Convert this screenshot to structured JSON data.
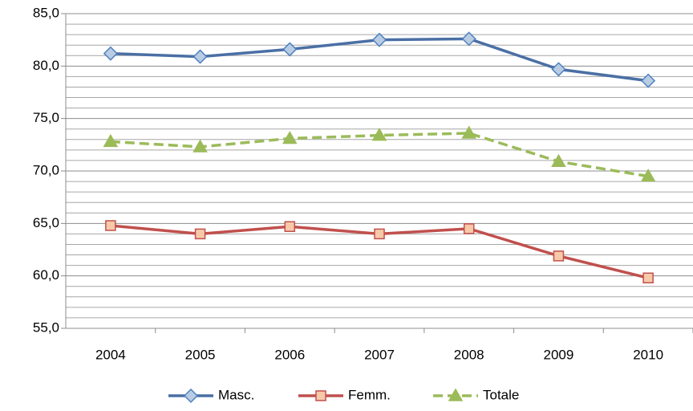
{
  "chart_data": {
    "type": "line",
    "categories": [
      "2004",
      "2005",
      "2006",
      "2007",
      "2008",
      "2009",
      "2010"
    ],
    "series": [
      {
        "name": "Masc.",
        "color": "#4a6fa5",
        "marker": "diamond",
        "marker_fill": "#b8cce4",
        "marker_stroke": "#4f81bd",
        "dash": false,
        "values": [
          81.2,
          80.9,
          81.6,
          82.5,
          82.6,
          79.7,
          78.6
        ]
      },
      {
        "name": "Femm.",
        "color": "#c0504d",
        "marker": "square",
        "marker_fill": "#f7c9a9",
        "marker_stroke": "#c0504d",
        "dash": false,
        "values": [
          64.8,
          64.0,
          64.7,
          64.0,
          64.5,
          61.9,
          59.8
        ]
      },
      {
        "name": "Totale",
        "color": "#9bbb59",
        "marker": "triangle",
        "marker_fill": "#9bbb59",
        "marker_stroke": "#9bbb59",
        "dash": true,
        "values": [
          72.8,
          72.3,
          73.1,
          73.4,
          73.6,
          70.9,
          69.5
        ]
      }
    ],
    "ylim": [
      55,
      85
    ],
    "yticks": [
      {
        "value": 55,
        "label": "55,0"
      },
      {
        "value": 60,
        "label": "60,0"
      },
      {
        "value": 65,
        "label": "65,0"
      },
      {
        "value": 70,
        "label": "70,0"
      },
      {
        "value": 75,
        "label": "75,0"
      },
      {
        "value": 80,
        "label": "80,0"
      },
      {
        "value": 85,
        "label": "85,0"
      }
    ],
    "grid": true,
    "minor_grid": true,
    "legend": "bottom"
  }
}
